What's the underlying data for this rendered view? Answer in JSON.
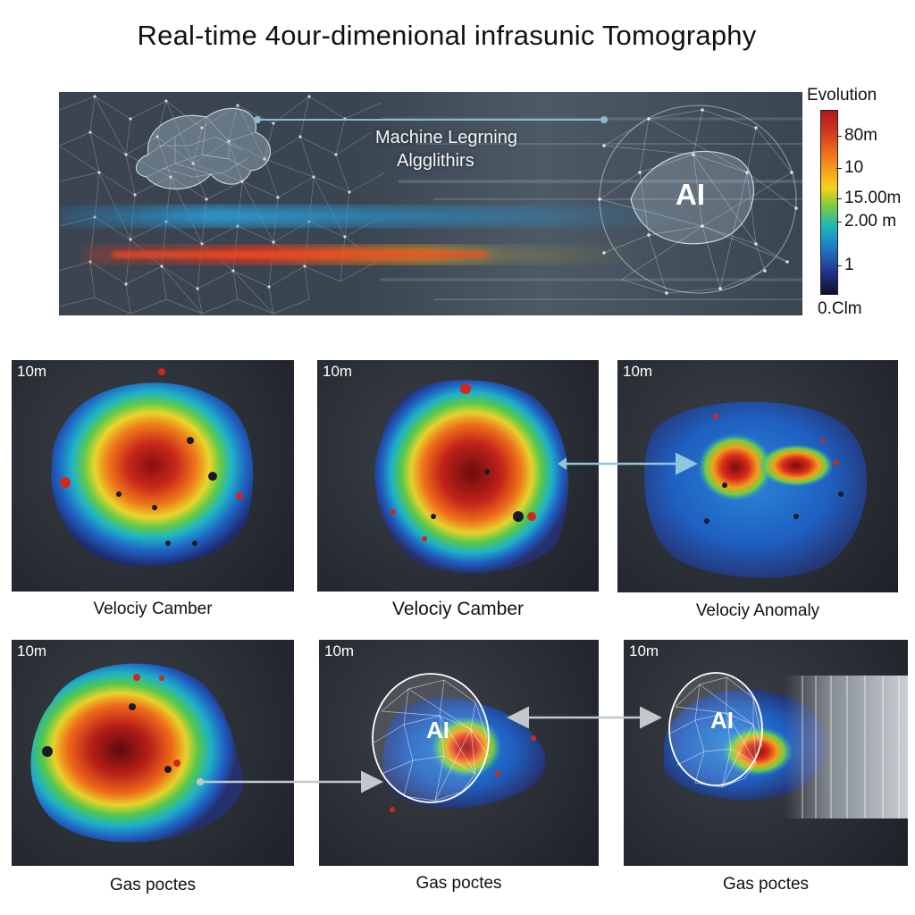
{
  "title": "Real-time 4our-dimenional infrasunic Tomography",
  "banner": {
    "ml_line1": "Machine Legrning",
    "ml_line2": "Algglithirs",
    "ai_label": "AI"
  },
  "legend": {
    "title": "Evolution",
    "ticks": [
      "80m",
      "10",
      "15.00m",
      "2.00 m",
      "1",
      "0.Clm"
    ],
    "colors": [
      "#b0181c",
      "#f0781a",
      "#f5d21e",
      "#1fb7b8",
      "#1f79c9",
      "#0e0f2c"
    ]
  },
  "panels": [
    {
      "scale": "10m",
      "caption": "Velociy Camber",
      "ai": ""
    },
    {
      "scale": "10m",
      "caption": "Velociy Camber",
      "ai": ""
    },
    {
      "scale": "10m",
      "caption": "Velociy Anomaly",
      "ai": ""
    },
    {
      "scale": "10m",
      "caption": "Gas poctes",
      "ai": ""
    },
    {
      "scale": "10m",
      "caption": "Gas poctes",
      "ai": "AI"
    },
    {
      "scale": "10m",
      "caption": "Gas poctes",
      "ai": "AI"
    }
  ]
}
